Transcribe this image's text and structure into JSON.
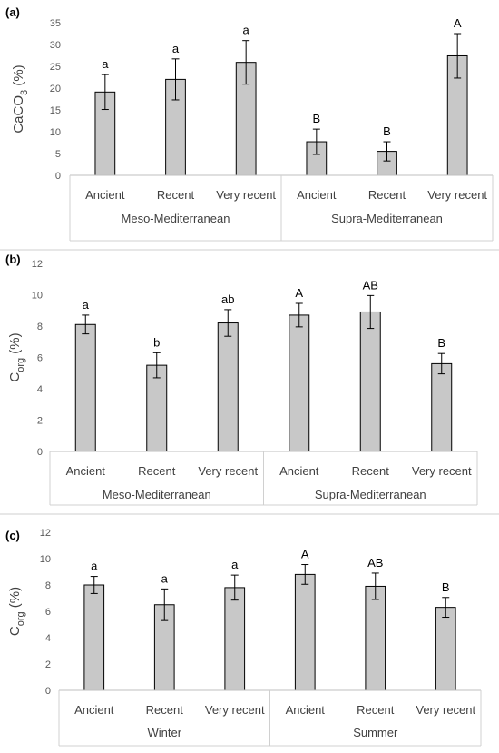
{
  "chart_data": [
    {
      "type": "bar",
      "panel_label": "(a)",
      "ylabel_main": "CaCO",
      "ylabel_sub": "3",
      "ylabel_tail": " (%)",
      "yticks": [
        "0",
        "5",
        "10",
        "15",
        "20",
        "25",
        "30",
        "35"
      ],
      "ylim": [
        0,
        35
      ],
      "groups": [
        "Meso-Mediterranean",
        "Supra-Mediterranean"
      ],
      "categories": [
        "Ancient",
        "Recent",
        "Very recent",
        "Ancient",
        "Recent",
        "Very recent"
      ],
      "values": [
        19.1,
        22.0,
        25.9,
        7.7,
        5.5,
        27.4
      ],
      "errors": [
        4.0,
        4.7,
        5.0,
        2.9,
        2.2,
        5.1
      ],
      "letters": [
        "a",
        "a",
        "a",
        "B",
        "B",
        "A"
      ],
      "bar_color": "#c8c8c8"
    },
    {
      "type": "bar",
      "panel_label": "(b)",
      "ylabel_main": "C",
      "ylabel_sub": "org",
      "ylabel_tail": " (%)",
      "yticks": [
        "0",
        "2",
        "4",
        "6",
        "8",
        "10",
        "12"
      ],
      "ylim": [
        0,
        12
      ],
      "groups": [
        "Meso-Mediterranean",
        "Supra-Mediterranean"
      ],
      "categories": [
        "Ancient",
        "Recent",
        "Very recent",
        "Ancient",
        "Recent",
        "Very recent"
      ],
      "values": [
        8.1,
        5.5,
        8.2,
        8.7,
        8.9,
        5.6
      ],
      "errors": [
        0.6,
        0.8,
        0.85,
        0.75,
        1.05,
        0.65
      ],
      "letters": [
        "a",
        "b",
        "ab",
        "A",
        "AB",
        "B"
      ],
      "bar_color": "#c8c8c8"
    },
    {
      "type": "bar",
      "panel_label": "(c)",
      "ylabel_main": "C",
      "ylabel_sub": "org",
      "ylabel_tail": " (%)",
      "yticks": [
        "0",
        "2",
        "4",
        "6",
        "8",
        "10",
        "12"
      ],
      "ylim": [
        0,
        12
      ],
      "groups": [
        "Winter",
        "Summer"
      ],
      "categories": [
        "Ancient",
        "Recent",
        "Very recent",
        "Ancient",
        "Recent",
        "Very recent"
      ],
      "values": [
        8.0,
        6.5,
        7.8,
        8.8,
        7.9,
        6.3
      ],
      "errors": [
        0.65,
        1.2,
        0.95,
        0.75,
        1.0,
        0.75
      ],
      "letters": [
        "a",
        "a",
        "a",
        "A",
        "AB",
        "B"
      ],
      "bar_color": "#c8c8c8"
    }
  ]
}
